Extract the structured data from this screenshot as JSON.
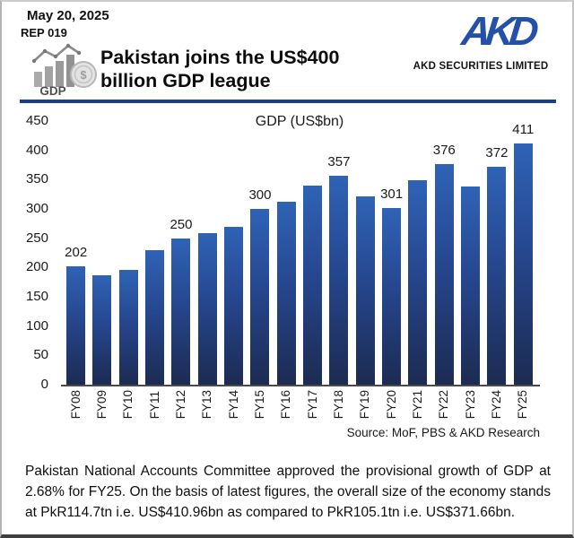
{
  "header": {
    "date": "May 20, 2025",
    "report_id": "REP 019",
    "title_line1": "Pakistan joins the US$400",
    "title_line2": "billion GDP league",
    "gdp_icon_label": "GDP",
    "gdp_icon_dollar": "$",
    "logo_monogram": "AKD",
    "logo_name": "AKD SECURITIES LIMITED",
    "icons": {
      "gdp_icon": "bar-chart-with-coin",
      "logo_icon": "akd-monogram"
    },
    "colors": {
      "header_rule": "#1E3C8C",
      "logo_blue": "#2350A8"
    }
  },
  "chart_data": {
    "type": "bar",
    "title": "GDP (US$bn)",
    "categories": [
      "FY08",
      "FY09",
      "FY10",
      "FY11",
      "FY12",
      "FY13",
      "FY14",
      "FY15",
      "FY16",
      "FY17",
      "FY18",
      "FY19",
      "FY20",
      "FY21",
      "FY22",
      "FY23",
      "FY24",
      "FY25"
    ],
    "values": [
      202,
      186,
      196,
      230,
      250,
      258,
      270,
      300,
      313,
      340,
      357,
      321,
      301,
      349,
      376,
      338,
      372,
      411
    ],
    "data_labels": {
      "FY08": 202,
      "FY12": 250,
      "FY15": 300,
      "FY18": 357,
      "FY20": 301,
      "FY22": 376,
      "FY24": 372,
      "FY25": 411
    },
    "xlabel": "",
    "ylabel": "",
    "ylim": [
      0,
      450
    ],
    "yticks": [
      450,
      400,
      350,
      300,
      250,
      200,
      150,
      100,
      50,
      0
    ],
    "grid": false,
    "legend": "none",
    "bar_color_top": "#2F63B6",
    "bar_color_bottom": "#1C2B52",
    "source": "Source: MoF, PBS & AKD Research"
  },
  "footer": {
    "note": "Pakistan National Accounts Committee approved the provisional growth of GDP at 2.68% for FY25. On the basis of latest figures, the overall size of the economy stands at PkR114.7tn i.e. US$410.96bn as compared to PkR105.1tn i.e. US$371.66bn."
  }
}
